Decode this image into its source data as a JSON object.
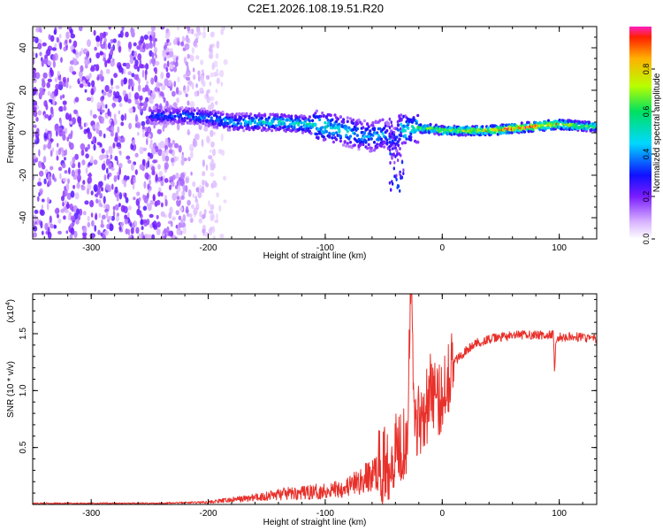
{
  "title": "C2E1.2026.108.19.51.R20",
  "spectrogram": {
    "xlabel": "Height of straight line (km)",
    "ylabel": "Frequency (Hz)",
    "xticks": [
      "-300",
      "-200",
      "-100",
      "0",
      "100"
    ],
    "yticks": [
      "-40",
      "-20",
      "0",
      "20",
      "40"
    ],
    "colorbar_label": "Normalized spectral amplitude",
    "colorbar_ticks": [
      "0.0",
      "0.2",
      "0.4",
      "0.6",
      "0.8"
    ]
  },
  "chart_data": [
    {
      "type": "heatmap",
      "title": "C2E1.2026.108.19.51.R20",
      "xlabel": "Height of straight line (km)",
      "ylabel": "Frequency (Hz)",
      "xlim": [
        -350,
        132
      ],
      "ylim": [
        -50,
        50
      ],
      "xticks": [
        -300,
        -200,
        -100,
        0,
        100
      ],
      "yticks": [
        -40,
        -20,
        0,
        20,
        40
      ],
      "colorbar": {
        "label": "Normalized spectral amplitude",
        "range": [
          0,
          1
        ],
        "ticks": [
          0.0,
          0.2,
          0.4,
          0.6,
          0.8
        ]
      },
      "ridge": {
        "description": "Dominant frequency ridge of normalized spectral amplitude versus height",
        "x": [
          -250,
          -220,
          -200,
          -180,
          -160,
          -140,
          -120,
          -100,
          -85,
          -70,
          -60,
          -50,
          -42,
          -35,
          -30,
          -25,
          -20,
          -10,
          0,
          20,
          40,
          60,
          80,
          100,
          120,
          132
        ],
        "frequency": [
          8,
          8,
          7,
          5,
          5,
          5,
          4,
          3,
          1,
          -1,
          -2,
          0,
          -5,
          2,
          1,
          2,
          2,
          2,
          1,
          1,
          1,
          2,
          3,
          4,
          3,
          3
        ],
        "amplitude": [
          0.35,
          0.4,
          0.42,
          0.45,
          0.5,
          0.55,
          0.55,
          0.55,
          0.5,
          0.45,
          0.45,
          0.45,
          0.35,
          0.55,
          0.6,
          0.55,
          0.65,
          0.7,
          0.75,
          0.8,
          0.9,
          0.95,
          0.95,
          0.9,
          0.75,
          0.7
        ]
      },
      "noise_region": {
        "x_range": [
          -350,
          -200
        ],
        "frequency_range": [
          -50,
          50
        ],
        "amplitude": 0.1
      }
    },
    {
      "type": "line",
      "xlabel": "Height of straight line (km)",
      "ylabel": "SNR (10 * v/v)",
      "multiplier_label": "(x10",
      "multiplier_exponent": "4",
      "xlim": [
        -350,
        132
      ],
      "ylim": [
        0,
        1.85
      ],
      "xticks": [
        -300,
        -200,
        -100,
        0,
        100
      ],
      "yticks": [
        0.5,
        1.0,
        1.5
      ],
      "color": "#e8302a",
      "x": [
        -350,
        -300,
        -250,
        -220,
        -200,
        -180,
        -160,
        -140,
        -120,
        -100,
        -90,
        -80,
        -70,
        -60,
        -50,
        -45,
        -40,
        -35,
        -30,
        -28,
        -26,
        -24,
        -22,
        -20,
        -18,
        -15,
        -12,
        -10,
        -8,
        -6,
        -4,
        -2,
        0,
        5,
        10,
        20,
        30,
        40,
        50,
        60,
        70,
        80,
        90,
        95,
        96,
        97,
        98,
        100,
        110,
        120,
        132
      ],
      "values": [
        0.01,
        0.01,
        0.01,
        0.015,
        0.02,
        0.04,
        0.06,
        0.09,
        0.1,
        0.12,
        0.14,
        0.16,
        0.2,
        0.26,
        0.33,
        0.4,
        0.5,
        0.55,
        0.6,
        1.6,
        1.85,
        0.85,
        0.7,
        0.75,
        0.8,
        0.85,
        0.9,
        1.0,
        1.05,
        0.95,
        0.85,
        0.9,
        1.0,
        1.15,
        1.25,
        1.35,
        1.42,
        1.45,
        1.47,
        1.48,
        1.49,
        1.49,
        1.48,
        1.5,
        1.14,
        1.4,
        1.46,
        1.47,
        1.47,
        1.47,
        1.45
      ]
    }
  ]
}
